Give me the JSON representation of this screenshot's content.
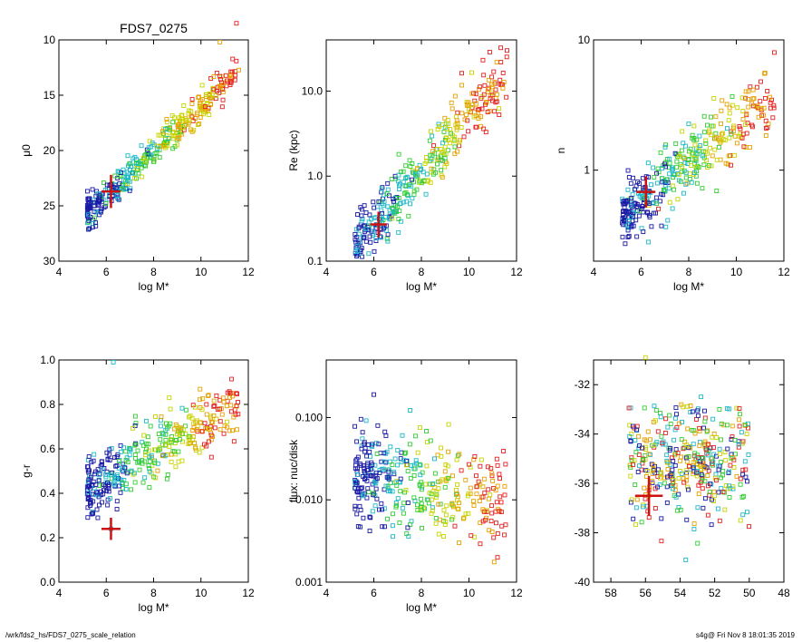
{
  "figure_title": "FDS7_0275",
  "footer": {
    "path": "/wrk/fds2_hs/FDS7_0275_scale_relation",
    "stamp": "s4g@  Fri Nov  8 18:01:35 2019"
  },
  "colors": {
    "scatter_sequence": [
      "#1a1aa6",
      "#1fb8c8",
      "#33cc33",
      "#c8d400",
      "#e6a000",
      "#e52020"
    ],
    "marker_cross": "#cc1111"
  },
  "chart_data": [
    {
      "type": "scatter",
      "title": "FDS7_0275",
      "xlabel": "log M*",
      "ylabel": "μ0",
      "xlim": [
        4,
        12
      ],
      "ylim": [
        30,
        10
      ],
      "xticks": [
        4,
        6,
        8,
        10,
        12
      ],
      "yticks": [
        10,
        15,
        20,
        25,
        30
      ],
      "trend": {
        "x0": 5.5,
        "y0": 25.2,
        "slope": -2.05,
        "spread": 1.3
      },
      "points_note": "dense cloud of ~400 galaxies colour-coded by g-r",
      "sample_points": [
        {
          "x": 6.2,
          "y": 23.7
        },
        {
          "x": 7.0,
          "y": 22.8
        },
        {
          "x": 8.0,
          "y": 21.0
        },
        {
          "x": 9.0,
          "y": 19.5
        },
        {
          "x": 10.0,
          "y": 15.5
        },
        {
          "x": 10.8,
          "y": 10.2
        },
        {
          "x": 11.5,
          "y": 8.5
        },
        {
          "x": 9.2,
          "y": 16.8
        }
      ],
      "marker": {
        "x": 6.2,
        "y": 23.7,
        "xerr": 0.4,
        "yerr": 1.5
      }
    },
    {
      "type": "scatter",
      "xlabel": "log M*",
      "ylabel": "Re (kpc)",
      "ylog": true,
      "xlim": [
        4,
        12
      ],
      "ylim": [
        0.1,
        40
      ],
      "xticks": [
        4,
        6,
        8,
        10,
        12
      ],
      "yticks": [
        0.1,
        1.0,
        10.0
      ],
      "ytick_labels": [
        "0.1",
        "1.0",
        "10.0"
      ],
      "trend": {
        "x0": 5.5,
        "y0": -0.75,
        "slope": 0.32,
        "spread": 0.3
      },
      "sample_points": [
        {
          "x": 6.2,
          "y": 0.27
        },
        {
          "x": 7.5,
          "y": 0.8
        },
        {
          "x": 9.0,
          "y": 2.2
        },
        {
          "x": 10.5,
          "y": 5.0
        },
        {
          "x": 11.6,
          "y": 30.0
        }
      ],
      "marker": {
        "x": 6.2,
        "y": 0.27,
        "xerr": 0.35,
        "yerr_log": 0.15
      }
    },
    {
      "type": "scatter",
      "xlabel": "log M*",
      "ylabel": "n",
      "ylog": true,
      "xlim": [
        4,
        12
      ],
      "ylim": [
        0.2,
        10
      ],
      "xticks": [
        4,
        6,
        8,
        10,
        12
      ],
      "yticks": [
        1,
        10
      ],
      "ytick_labels": [
        "1",
        "10"
      ],
      "trend": {
        "x0": 5.5,
        "y0": -0.3,
        "slope": 0.14,
        "spread": 0.22
      },
      "sample_points": [
        {
          "x": 6.2,
          "y": 0.68
        },
        {
          "x": 8.0,
          "y": 1.2
        },
        {
          "x": 10.5,
          "y": 3.5
        },
        {
          "x": 11.6,
          "y": 8.0
        }
      ],
      "marker": {
        "x": 6.2,
        "y": 0.68,
        "xerr": 0.4,
        "yerr_log": 0.12
      }
    },
    {
      "type": "scatter",
      "xlabel": "log M*",
      "ylabel": "g-r",
      "xlim": [
        4,
        12
      ],
      "ylim": [
        0.0,
        1.0
      ],
      "xticks": [
        4,
        6,
        8,
        10,
        12
      ],
      "yticks": [
        0.0,
        0.2,
        0.4,
        0.6,
        0.8,
        1.0
      ],
      "ytick_labels": [
        "0.0",
        "0.2",
        "0.4",
        "0.6",
        "0.8",
        "1.0"
      ],
      "trend": {
        "x0": 5.5,
        "y0": 0.45,
        "slope": 0.055,
        "spread": 0.12
      },
      "sample_points": [
        {
          "x": 6.2,
          "y": 0.24
        },
        {
          "x": 7.0,
          "y": 0.6
        },
        {
          "x": 9.0,
          "y": 0.7
        },
        {
          "x": 11.5,
          "y": 0.85
        },
        {
          "x": 6.3,
          "y": 0.99
        }
      ],
      "marker": {
        "x": 6.2,
        "y": 0.24,
        "xerr": 0.4,
        "yerr": 0.05
      }
    },
    {
      "type": "scatter",
      "xlabel": "log M*",
      "ylabel": "flux: nuc/disk",
      "ylog": true,
      "xlim": [
        4,
        12
      ],
      "ylim": [
        0.001,
        0.5
      ],
      "xticks": [
        4,
        6,
        8,
        10,
        12
      ],
      "yticks": [
        0.001,
        0.01,
        0.1
      ],
      "ytick_labels": [
        "0.001",
        "0.010",
        "0.100"
      ],
      "trend": {
        "x0": 5.5,
        "y0": -1.7,
        "slope": -0.05,
        "spread": 0.5
      },
      "sample_points": [
        {
          "x": 6.0,
          "y": 0.19
        },
        {
          "x": 7.0,
          "y": 0.04
        },
        {
          "x": 9.0,
          "y": 0.005
        },
        {
          "x": 11.2,
          "y": 0.002
        }
      ]
    },
    {
      "type": "scatter",
      "xlabel": "",
      "ylabel": "",
      "xlim": [
        59,
        48
      ],
      "ylim": [
        -40,
        -31
      ],
      "xticks": [
        58,
        56,
        54,
        52,
        50,
        48
      ],
      "yticks": [
        -40,
        -38,
        -36,
        -34,
        -32
      ],
      "trend": {
        "x0": 56.0,
        "y0": -35.0,
        "slope": 0.0,
        "spread": 1.2
      },
      "sample_points": [
        {
          "x": 55.8,
          "y": -36.5
        },
        {
          "x": 54.0,
          "y": -35.5
        },
        {
          "x": 52.0,
          "y": -36.5
        },
        {
          "x": 50.5,
          "y": -37.5
        },
        {
          "x": 56.0,
          "y": -30.9
        }
      ],
      "marker": {
        "x": 55.8,
        "y": -36.5,
        "xerr": 0.8,
        "yerr": 0.8
      }
    }
  ]
}
